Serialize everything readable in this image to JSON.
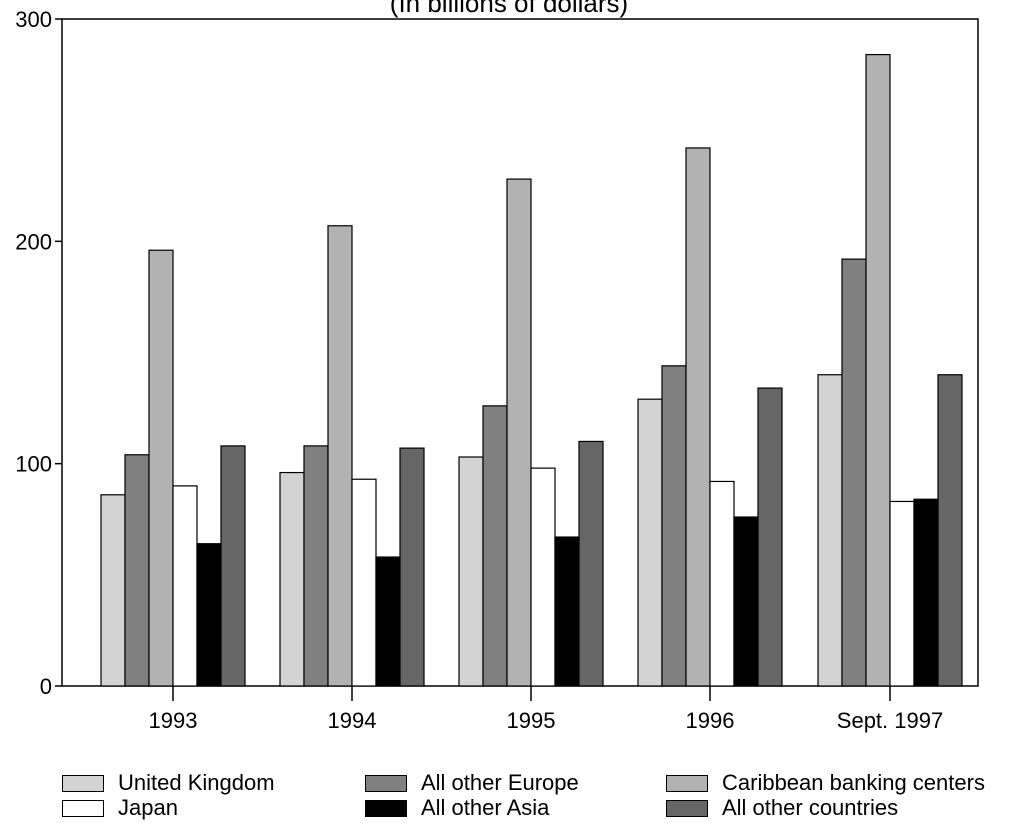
{
  "chart_data": {
    "type": "bar",
    "subtitle": "(In billions of dollars)",
    "categories": [
      "1993",
      "1994",
      "1995",
      "1996",
      "Sept. 1997"
    ],
    "ylim": [
      0,
      300
    ],
    "yticks": [
      "0",
      "100",
      "200",
      "300"
    ],
    "grid": false,
    "legend_position": "bottom",
    "series": [
      {
        "name": "United Kingdom",
        "color": "#d3d3d3",
        "values": [
          86,
          96,
          103,
          129,
          140
        ]
      },
      {
        "name": "All other Europe",
        "color": "#808080",
        "values": [
          104,
          108,
          126,
          144,
          192
        ]
      },
      {
        "name": "Caribbean banking centers",
        "color": "#b2b2b2",
        "values": [
          196,
          207,
          228,
          242,
          284
        ]
      },
      {
        "name": "Japan",
        "color": "#ffffff",
        "values": [
          90,
          93,
          98,
          92,
          83
        ]
      },
      {
        "name": "All other Asia",
        "color": "#000000",
        "values": [
          64,
          58,
          67,
          76,
          84
        ]
      },
      {
        "name": "All other countries",
        "color": "#666666",
        "values": [
          108,
          107,
          110,
          134,
          140
        ]
      }
    ]
  }
}
